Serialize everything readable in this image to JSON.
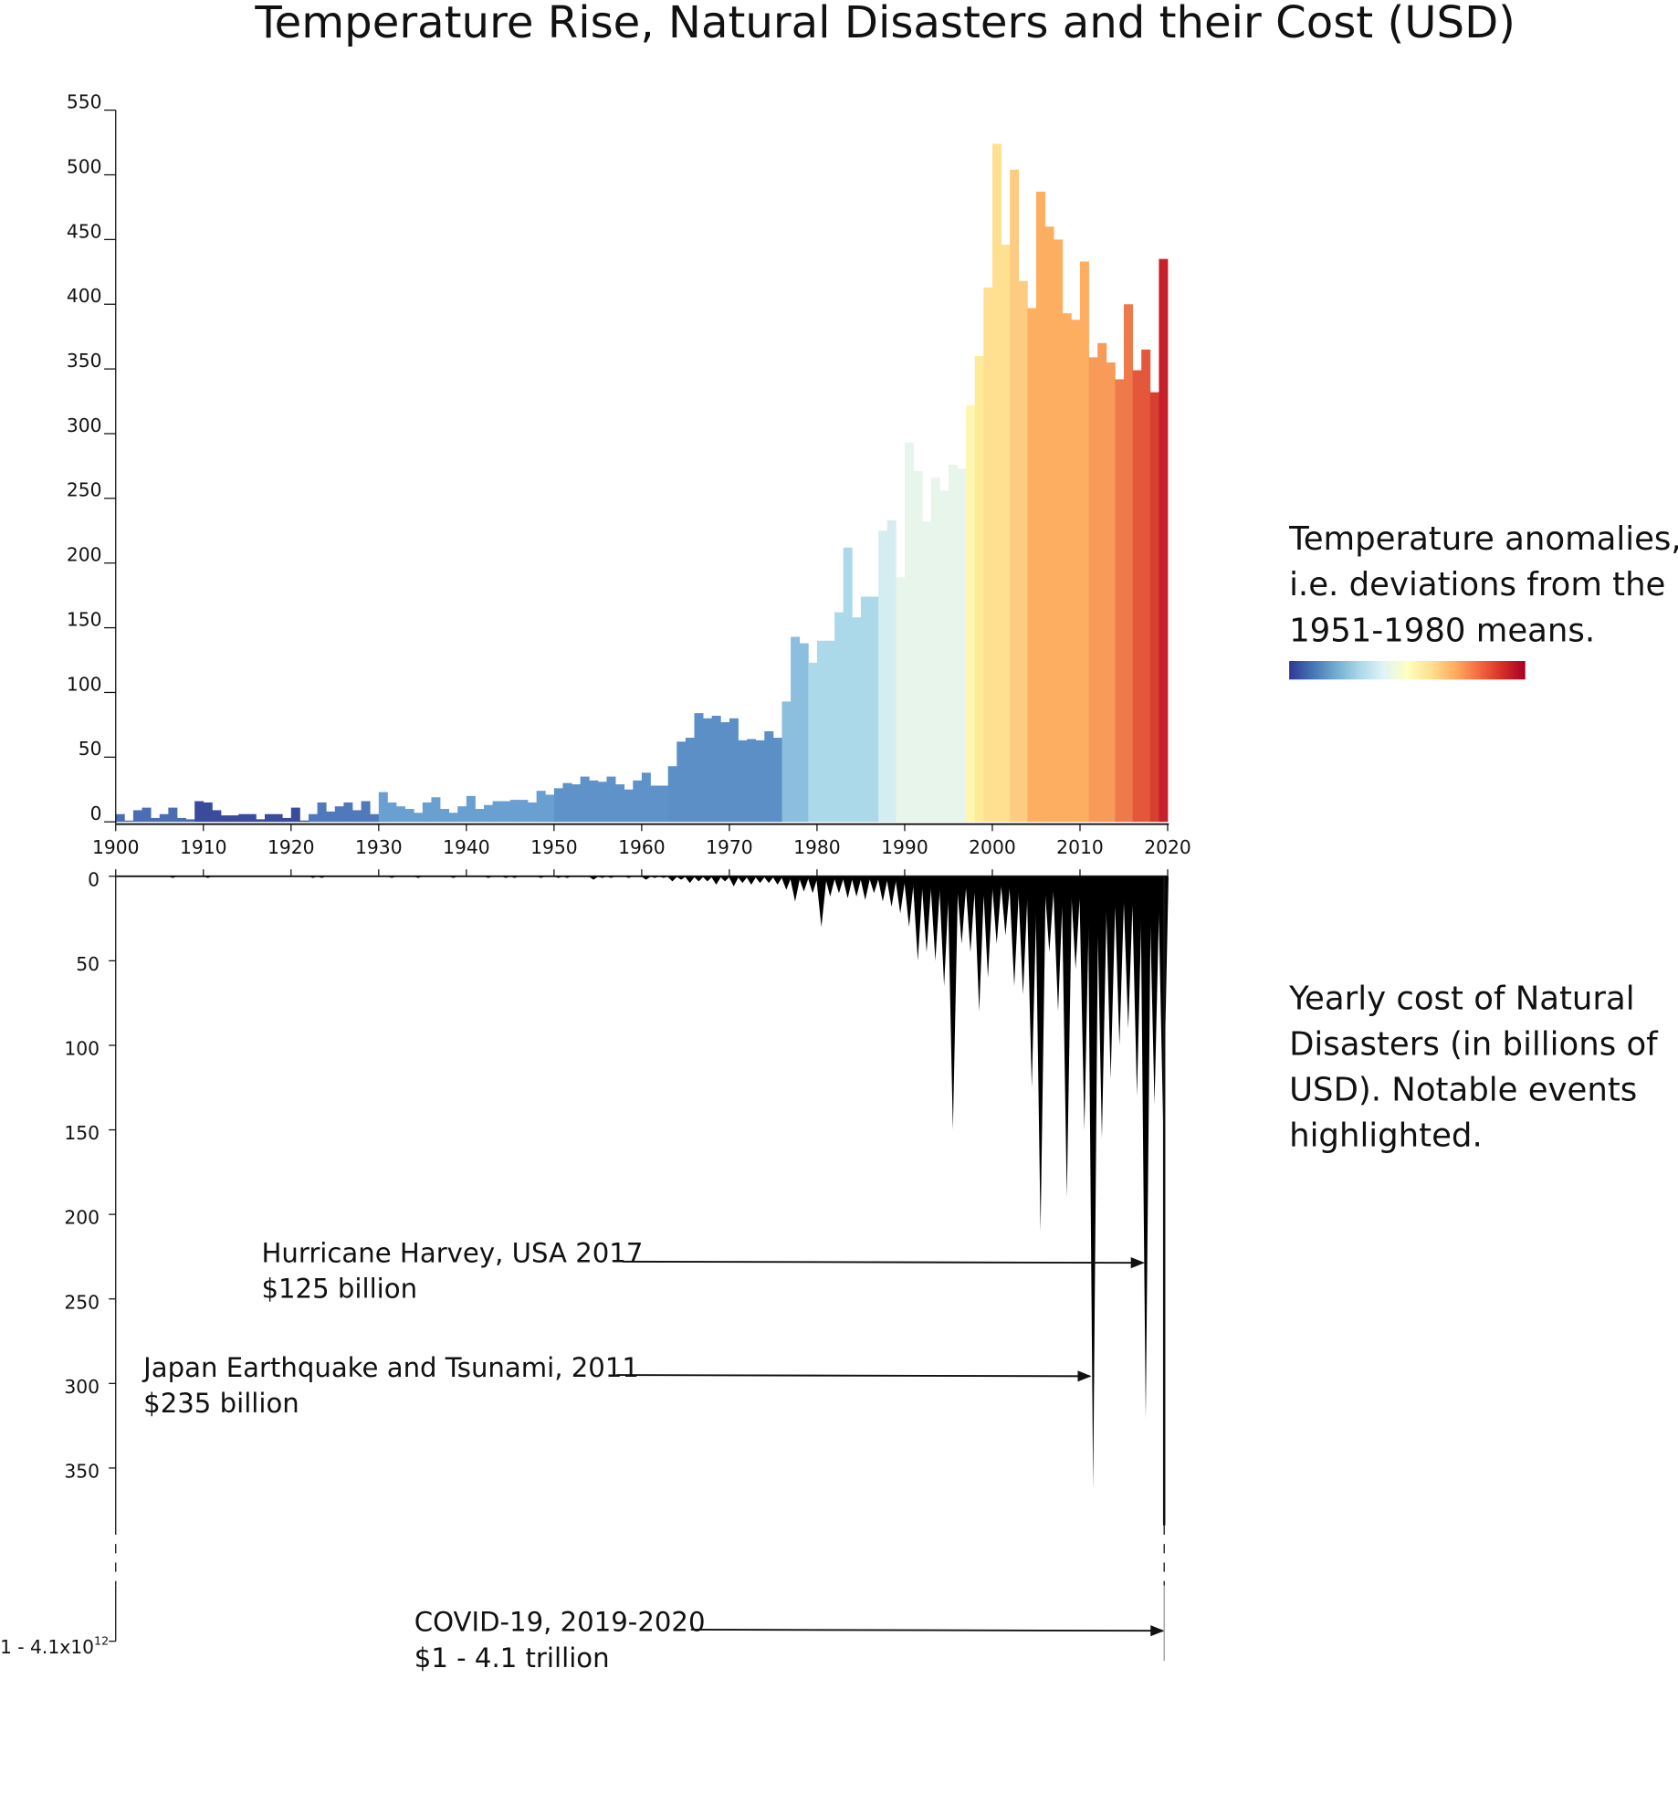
{
  "chart_data": [
    {
      "type": "bar",
      "title": "Temperature Rise, Natural Disasters and their Cost (USD)",
      "legend_lines": [
        "Temperature anomalies,",
        "i.e. deviations from the",
        "1951-1980 means."
      ],
      "colorbar": [
        "#313695",
        "#4575b4",
        "#74add1",
        "#abd9e9",
        "#e0f3f8",
        "#ffffbf",
        "#fee090",
        "#fdae61",
        "#f46d43",
        "#d73027",
        "#a50026"
      ],
      "x": [
        1900,
        1901,
        1902,
        1903,
        1904,
        1905,
        1906,
        1907,
        1908,
        1909,
        1910,
        1911,
        1912,
        1913,
        1914,
        1915,
        1916,
        1917,
        1918,
        1919,
        1920,
        1921,
        1922,
        1923,
        1924,
        1925,
        1926,
        1927,
        1928,
        1929,
        1930,
        1931,
        1932,
        1933,
        1934,
        1935,
        1936,
        1937,
        1938,
        1939,
        1940,
        1941,
        1942,
        1943,
        1944,
        1945,
        1946,
        1947,
        1948,
        1949,
        1950,
        1951,
        1952,
        1953,
        1954,
        1955,
        1956,
        1957,
        1958,
        1959,
        1960,
        1961,
        1962,
        1963,
        1964,
        1965,
        1966,
        1967,
        1968,
        1969,
        1970,
        1971,
        1972,
        1973,
        1974,
        1975,
        1976,
        1977,
        1978,
        1979,
        1980,
        1981,
        1982,
        1983,
        1984,
        1985,
        1986,
        1987,
        1988,
        1989,
        1990,
        1991,
        1992,
        1993,
        1994,
        1995,
        1996,
        1997,
        1998,
        1999,
        2000,
        2001,
        2002,
        2003,
        2004,
        2005,
        2006,
        2007,
        2008,
        2009,
        2010,
        2011,
        2012,
        2013,
        2014,
        2015,
        2016,
        2017,
        2018,
        2019
      ],
      "values": [
        6,
        1,
        9,
        11,
        3,
        6,
        11,
        3,
        2,
        16,
        15,
        9,
        5,
        5,
        6,
        6,
        2,
        6,
        6,
        3,
        11,
        1,
        6,
        15,
        8,
        12,
        15,
        9,
        16,
        6,
        23,
        15,
        12,
        10,
        7,
        15,
        19,
        10,
        7,
        12,
        20,
        10,
        13,
        16,
        16,
        17,
        17,
        15,
        24,
        21,
        26,
        30,
        29,
        35,
        32,
        31,
        35,
        29,
        25,
        32,
        38,
        28,
        28,
        43,
        62,
        65,
        84,
        80,
        82,
        77,
        80,
        63,
        64,
        63,
        70,
        65,
        93,
        143,
        138,
        123,
        140,
        140,
        162,
        212,
        158,
        174,
        174,
        225,
        233,
        189,
        293,
        271,
        232,
        266,
        256,
        276,
        273,
        322,
        360,
        413,
        524,
        446,
        504,
        418,
        397,
        487,
        460,
        450,
        393,
        388,
        433,
        359,
        370,
        355,
        342,
        400,
        349,
        365,
        332,
        435
      ],
      "colors": [
        "#4b6db3",
        "#4b6db3",
        "#4b6db3",
        "#4b6db3",
        "#4b6db3",
        "#4b6db3",
        "#4b6db3",
        "#4b6db3",
        "#4b6db3",
        "#3a4b9c",
        "#3a4b9c",
        "#3a4b9c",
        "#3a4b9c",
        "#3a4b9c",
        "#3a4b9c",
        "#3a4b9c",
        "#3a4b9c",
        "#3a4b9c",
        "#3a4b9c",
        "#3a4b9c",
        "#3a4b9c",
        "#3a4b9c",
        "#4f79ba",
        "#4f79ba",
        "#4f79ba",
        "#4f79ba",
        "#4f79ba",
        "#4f79ba",
        "#4f79ba",
        "#4f79ba",
        "#6a9fd1",
        "#6a9fd1",
        "#6a9fd1",
        "#6a9fd1",
        "#6a9fd1",
        "#6a9fd1",
        "#6a9fd1",
        "#6a9fd1",
        "#6a9fd1",
        "#6a9fd1",
        "#6a9fd1",
        "#6a9fd1",
        "#6a9fd1",
        "#6a9fd1",
        "#6a9fd1",
        "#6a9fd1",
        "#6a9fd1",
        "#6a9fd1",
        "#6a9fd1",
        "#6a9fd1",
        "#5f92c8",
        "#5f92c8",
        "#5f92c8",
        "#5f92c8",
        "#5f92c8",
        "#5f92c8",
        "#5f92c8",
        "#5f92c8",
        "#5f92c8",
        "#5f92c8",
        "#5f92c8",
        "#5f92c8",
        "#5f92c8",
        "#5b8fc5",
        "#5b8fc5",
        "#5b8fc5",
        "#5b8fc5",
        "#5b8fc5",
        "#5b8fc5",
        "#5b8fc5",
        "#5b8fc5",
        "#5b8fc5",
        "#5b8fc5",
        "#5b8fc5",
        "#5b8fc5",
        "#5b8fc5",
        "#8cbedd",
        "#8cbedd",
        "#8cbedd",
        "#abd9e9",
        "#abd9e9",
        "#abd9e9",
        "#abd9e9",
        "#abd9e9",
        "#abd9e9",
        "#abd9e9",
        "#abd9e9",
        "#d4edf1",
        "#d4edf1",
        "#e8f5ea",
        "#e8f5ea",
        "#e8f5ea",
        "#e8f5ea",
        "#e8f5ea",
        "#e8f5ea",
        "#e8f5ea",
        "#e8f5ea",
        "#fff7b0",
        "#feeb9a",
        "#fee090",
        "#fee090",
        "#fee090",
        "#fdcc80",
        "#fdcc80",
        "#fdae61",
        "#fdae61",
        "#fdae61",
        "#fdae61",
        "#fdae61",
        "#fdae61",
        "#fdae61",
        "#f89a58",
        "#f89a58",
        "#f89a58",
        "#ee7a4a",
        "#ee7a4a",
        "#e4573b",
        "#e4573b",
        "#d73f30",
        "#c8202a"
      ],
      "xlim": [
        1900,
        2020
      ],
      "xticks": [
        1900,
        1910,
        1920,
        1930,
        1940,
        1950,
        1960,
        1970,
        1980,
        1990,
        2000,
        2010,
        2020
      ],
      "ylim": [
        0,
        550
      ],
      "yticks": [
        0,
        50,
        100,
        150,
        200,
        250,
        300,
        350,
        400,
        450,
        500,
        550
      ]
    },
    {
      "type": "spike",
      "description_lines": [
        "Yearly cost of Natural",
        "Disasters (in billions of",
        "USD). Notable events",
        "highlighted."
      ],
      "x": [
        1900,
        1901,
        1902,
        1903,
        1904,
        1905,
        1906,
        1907,
        1908,
        1909,
        1910,
        1911,
        1912,
        1913,
        1914,
        1915,
        1916,
        1917,
        1918,
        1919,
        1920,
        1921,
        1922,
        1923,
        1924,
        1925,
        1926,
        1927,
        1928,
        1929,
        1930,
        1931,
        1932,
        1933,
        1934,
        1935,
        1936,
        1937,
        1938,
        1939,
        1940,
        1941,
        1942,
        1943,
        1944,
        1945,
        1946,
        1947,
        1948,
        1949,
        1950,
        1951,
        1952,
        1953,
        1954,
        1955,
        1956,
        1957,
        1958,
        1959,
        1960,
        1961,
        1962,
        1963,
        1964,
        1965,
        1966,
        1967,
        1968,
        1969,
        1970,
        1971,
        1972,
        1973,
        1974,
        1975,
        1976,
        1977,
        1978,
        1979,
        1980,
        1981,
        1982,
        1983,
        1984,
        1985,
        1986,
        1987,
        1988,
        1989,
        1990,
        1991,
        1992,
        1993,
        1994,
        1995,
        1996,
        1997,
        1998,
        1999,
        2000,
        2001,
        2002,
        2003,
        2004,
        2005,
        2006,
        2007,
        2008,
        2009,
        2010,
        2011,
        2012,
        2013,
        2014,
        2015,
        2016,
        2017,
        2018,
        2019
      ],
      "values": [
        0,
        0,
        0,
        0,
        0,
        0,
        1,
        0,
        0,
        0,
        1,
        0,
        0,
        0,
        0,
        0,
        0,
        0,
        0,
        0,
        0,
        0,
        1,
        1,
        0,
        0,
        0,
        0,
        0,
        0,
        0,
        1,
        0,
        0,
        1,
        0,
        0,
        0,
        1,
        0,
        0,
        0,
        1,
        0,
        1,
        1,
        0,
        0,
        1,
        0,
        1,
        1,
        0,
        0,
        2,
        1,
        1,
        0,
        1,
        0,
        2,
        1,
        1,
        3,
        2,
        4,
        3,
        3,
        5,
        3,
        6,
        4,
        5,
        4,
        4,
        5,
        8,
        15,
        9,
        10,
        30,
        12,
        10,
        13,
        12,
        14,
        10,
        15,
        18,
        22,
        30,
        50,
        45,
        50,
        65,
        150,
        40,
        45,
        80,
        60,
        40,
        35,
        65,
        70,
        125,
        210,
        45,
        80,
        190,
        55,
        150,
        362,
        155,
        120,
        100,
        90,
        130,
        321,
        135,
        150
      ],
      "color": "#000000",
      "ylim": [
        0,
        384
      ],
      "yticks": [
        0,
        50,
        100,
        150,
        200,
        250,
        300,
        350
      ],
      "break_label": {
        "text": "1 - 4.1x10",
        "exponent": "12"
      },
      "annotations": [
        {
          "lines": [
            "Hurricane Harvey, USA 2017",
            "$125 billion"
          ]
        },
        {
          "lines": [
            "Japan Earthquake and Tsunami, 2011",
            "$235 billion"
          ]
        },
        {
          "lines": [
            "COVID-19, 2019-2020",
            "$1 - 4.1 trillion"
          ]
        }
      ]
    }
  ]
}
